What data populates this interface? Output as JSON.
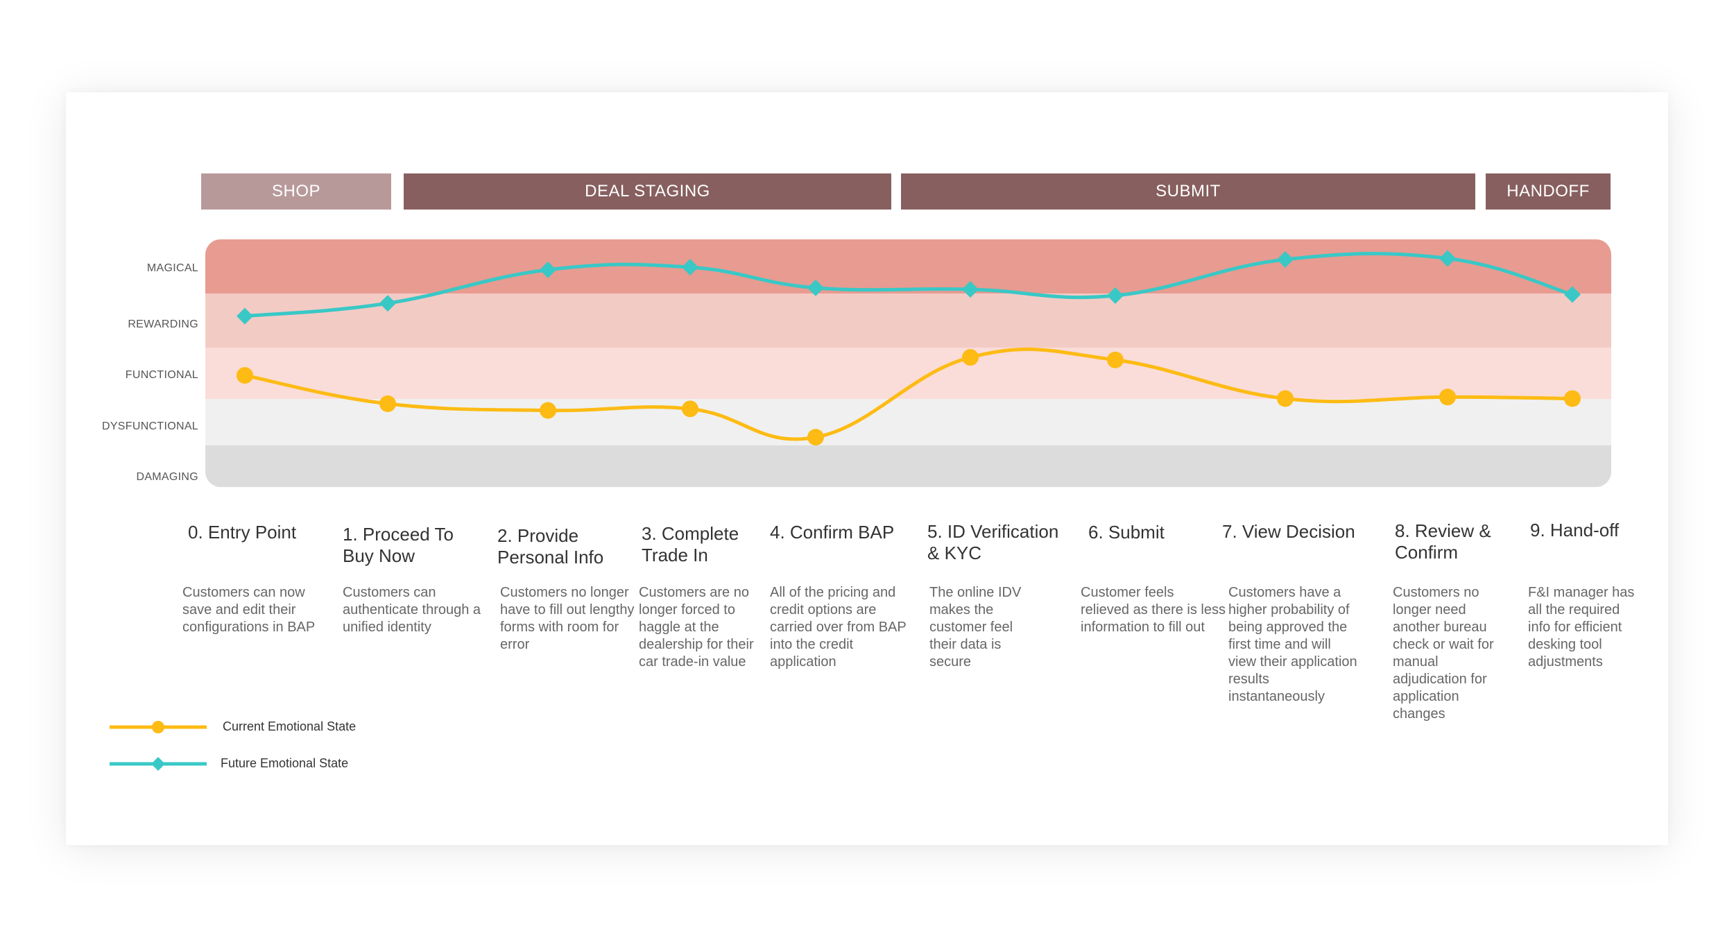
{
  "phases": [
    {
      "label": "SHOP",
      "color": "#b8999a"
    },
    {
      "label": "DEAL STAGING",
      "color": "#875f5f"
    },
    {
      "label": "SUBMIT",
      "color": "#875f5f"
    },
    {
      "label": "HANDOFF",
      "color": "#875f5f"
    }
  ],
  "steps": [
    {
      "title": "0. Entry Point",
      "description": "Customers can now save and edit their configurations in BAP"
    },
    {
      "title": "1. Proceed To Buy Now",
      "description": "Customers can authenticate through a unified identity"
    },
    {
      "title": "2. Provide Personal Info",
      "description": "Customers no longer have to fill out lengthy forms with room for error"
    },
    {
      "title": "3. Complete Trade In",
      "description": "Customers are no longer forced to haggle at the dealership for their car trade-in value"
    },
    {
      "title": "4. Confirm BAP",
      "description": "All of the pricing and credit options are carried over from BAP into the credit application"
    },
    {
      "title": "5. ID Verification & KYC",
      "description": "The online IDV makes the customer feel their data is secure"
    },
    {
      "title": "6. Submit",
      "description": "Customer feels relieved as there is less information to fill out"
    },
    {
      "title": "7.  View Decision",
      "description": "Customers have a higher probability of being approved the first time and will view their application results instantaneously"
    },
    {
      "title": "8. Review & Confirm",
      "description": "Customers no longer need another bureau check or wait for manual adjudication for application changes"
    },
    {
      "title": "9. Hand-off",
      "description": "F&I manager has all the required info for efficient desking tool adjustments"
    }
  ],
  "chart_data": {
    "type": "line",
    "title": "",
    "xlabel": "",
    "ylabel": "",
    "y_categories": [
      "DAMAGING",
      "DYSFUNCTIONAL",
      "FUNCTIONAL",
      "REWARDING",
      "MAGICAL"
    ],
    "y_scale": "0 = DAMAGING ... 4 = MAGICAL",
    "ylim": [
      -0.4,
      4.6
    ],
    "band_colors": [
      "#dcdcdc",
      "#f0f0f0",
      "#fadcd8",
      "#f3cbc5",
      "#e89b90"
    ],
    "grid": false,
    "legend_position": "bottom-left",
    "categories": [
      "0. Entry Point",
      "1. Proceed To Buy Now",
      "2. Provide Personal Info",
      "3. Complete Trade In",
      "4. Confirm BAP",
      "5. ID Verification & KYC",
      "6. Submit",
      "7.  View Decision",
      "8. Review & Confirm",
      "9. Hand-off"
    ],
    "series": [
      {
        "name": "Current Emotional State",
        "color": "#fdbb14",
        "marker": "circle",
        "values": [
          1.75,
          1.2,
          1.07,
          1.1,
          0.55,
          2.1,
          2.05,
          1.3,
          1.33,
          1.3
        ]
      },
      {
        "name": "Future Emotional State",
        "color": "#39c8c6",
        "marker": "diamond",
        "values": [
          2.9,
          3.15,
          3.8,
          3.85,
          3.45,
          3.42,
          3.3,
          4.0,
          4.02,
          3.32
        ]
      }
    ]
  }
}
